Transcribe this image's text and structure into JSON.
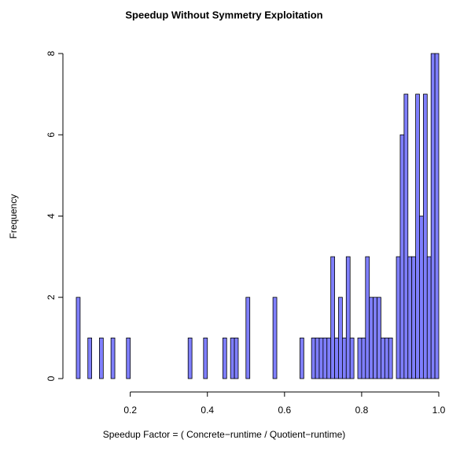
{
  "chart_data": {
    "type": "histogram",
    "title": "Speedup Without Symmetry Exploitation",
    "x_label": "Speedup Factor = ( Concrete−runtime / Quotient−runtime)",
    "y_label": "Frequency",
    "bins": [
      0.06,
      0.07,
      0.08,
      0.09,
      0.1,
      0.11,
      0.12,
      0.13,
      0.14,
      0.15,
      0.16,
      0.17,
      0.18,
      0.19,
      0.2,
      0.21,
      0.22,
      0.23,
      0.24,
      0.25,
      0.26,
      0.27,
      0.28,
      0.29,
      0.3,
      0.31,
      0.32,
      0.33,
      0.34,
      0.35,
      0.36,
      0.37,
      0.38,
      0.39,
      0.4,
      0.41,
      0.42,
      0.43,
      0.44,
      0.45,
      0.46,
      0.47,
      0.48,
      0.49,
      0.5,
      0.51,
      0.52,
      0.53,
      0.54,
      0.55,
      0.56,
      0.57,
      0.58,
      0.59,
      0.6,
      0.61,
      0.62,
      0.63,
      0.64,
      0.65,
      0.66,
      0.67,
      0.68,
      0.69,
      0.7,
      0.71,
      0.72,
      0.73,
      0.74,
      0.75,
      0.76,
      0.77,
      0.78,
      0.79,
      0.8,
      0.81,
      0.82,
      0.83,
      0.84,
      0.85,
      0.86,
      0.87,
      0.88,
      0.89,
      0.9,
      0.91,
      0.92,
      0.93,
      0.94,
      0.95,
      0.96,
      0.97,
      0.98,
      0.99,
      1.0
    ],
    "values": [
      2,
      0,
      0,
      1,
      0,
      0,
      1,
      0,
      0,
      1,
      0,
      0,
      0,
      1,
      0,
      0,
      0,
      0,
      0,
      0,
      0,
      0,
      0,
      0,
      0,
      0,
      0,
      0,
      0,
      1,
      0,
      0,
      0,
      1,
      0,
      0,
      0,
      0,
      1,
      0,
      1,
      1,
      0,
      0,
      2,
      0,
      0,
      0,
      0,
      0,
      0,
      2,
      0,
      0,
      0,
      0,
      0,
      0,
      1,
      0,
      0,
      1,
      1,
      1,
      1,
      1,
      3,
      1,
      2,
      1,
      3,
      1,
      0,
      1,
      1,
      3,
      2,
      2,
      2,
      1,
      1,
      1,
      0,
      3,
      6,
      7,
      3,
      3,
      7,
      4,
      7,
      3,
      8,
      8
    ],
    "color": "#7f7fff",
    "xlim": [
      0.06,
      1.0
    ],
    "ylim": [
      0,
      8
    ],
    "xticks": [
      0.2,
      0.4,
      0.6,
      0.8,
      {
        "value": 1,
        "label": "1.0"
      }
    ],
    "yticks": [
      0,
      2,
      4,
      6,
      8
    ]
  }
}
